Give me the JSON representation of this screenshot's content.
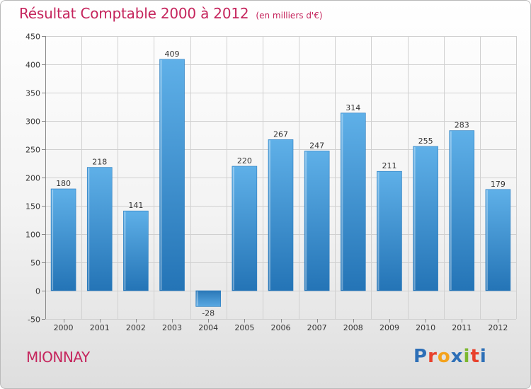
{
  "chart_data": {
    "type": "bar",
    "title": "Résultat Comptable 2000 à 2012",
    "unit": "(en milliers d'€)",
    "categories": [
      "2000",
      "2001",
      "2002",
      "2003",
      "2004",
      "2005",
      "2006",
      "2007",
      "2008",
      "2009",
      "2010",
      "2011",
      "2012"
    ],
    "values": [
      180,
      218,
      141,
      409,
      -28,
      220,
      267,
      247,
      314,
      211,
      255,
      283,
      179
    ],
    "ylim": [
      -50,
      450
    ],
    "yticks": [
      -50,
      0,
      50,
      100,
      150,
      200,
      250,
      300,
      350,
      400,
      450
    ],
    "xlabel": "",
    "ylabel": "",
    "grid": true,
    "colors": {
      "bar_light": "#5fb0e8",
      "bar_dark": "#2474b6",
      "neg_light": "#5aa9e2",
      "neg_dark": "#2a78b8",
      "title": "#c5245c"
    }
  },
  "footer": {
    "city": "MIONNAY",
    "logo": "Proxiti"
  }
}
